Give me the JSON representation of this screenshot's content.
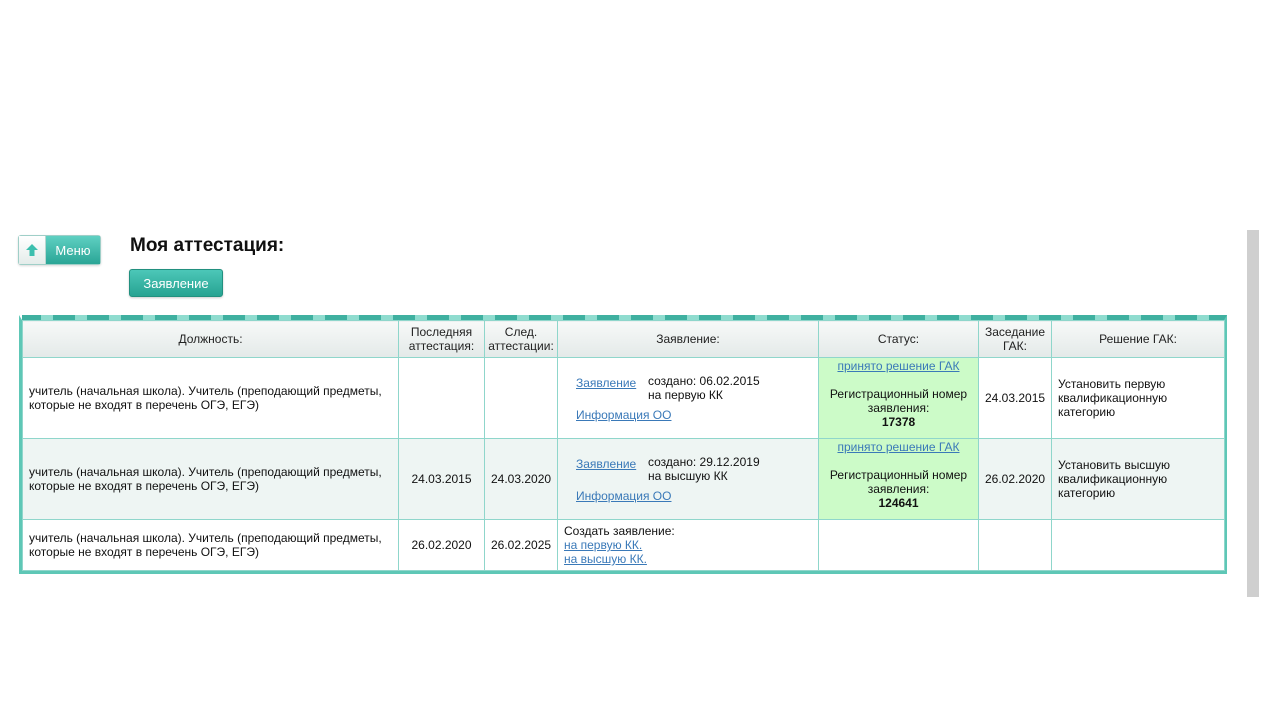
{
  "menu_button": {
    "label": "Меню",
    "icon": "arrow-up-icon"
  },
  "page_title": "Моя аттестация:",
  "application_button": "Заявление",
  "table": {
    "headers": [
      "Должность:",
      "Последняя аттестация:",
      "След. аттестации:",
      "Заявление:",
      "Статус:",
      "Заседание ГАК:",
      "Решение ГАК:"
    ],
    "rows": [
      {
        "position": "учитель (начальная школа). Учитель (преподающий предметы, которые не входят в перечень ОГЭ, ЕГЭ)",
        "last_attestation": "",
        "next_attestation": "",
        "application": {
          "link": "Заявление",
          "created": "создано: 06.02.2015",
          "category": "на первую КК",
          "info_link": "Информация ОО"
        },
        "status": {
          "link": "принято решение ГАК",
          "reg_label": "Регистрационный номер заявления:",
          "reg_number": "17378",
          "color": "#ccfbc8"
        },
        "gak_meeting": "24.03.2015",
        "gak_decision": "Установить первую квалификационную категорию"
      },
      {
        "position": "учитель (начальная школа). Учитель (преподающий предметы, которые не входят в перечень ОГЭ, ЕГЭ)",
        "last_attestation": "24.03.2015",
        "next_attestation": "24.03.2020",
        "application": {
          "link": "Заявление",
          "created": "создано: 29.12.2019",
          "category": "на высшую КК",
          "info_link": "Информация ОО"
        },
        "status": {
          "link": "принято решение ГАК",
          "reg_label": "Регистрационный номер заявления:",
          "reg_number": "124641",
          "color": "#ccfbc8"
        },
        "gak_meeting": "26.02.2020",
        "gak_decision": "Установить высшую квалификационную категорию"
      },
      {
        "position": "учитель (начальная школа). Учитель (преподающий предметы, которые не входят в перечень ОГЭ, ЕГЭ)",
        "last_attestation": "26.02.2020",
        "next_attestation": "26.02.2025",
        "create": {
          "label": "Создать заявление:",
          "first_link": "на первую КК.",
          "highest_link": "на высшую КК."
        },
        "gak_meeting": "",
        "gak_decision": ""
      }
    ]
  },
  "colors": {
    "accent": "#2aa596",
    "link": "#3a79b8",
    "status_bg": "#ccfbc8"
  }
}
